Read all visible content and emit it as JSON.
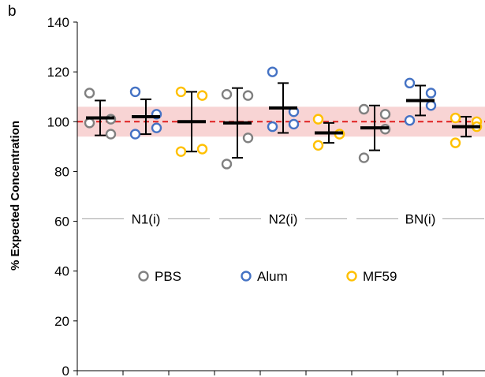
{
  "panel_label": "b",
  "chart_data": {
    "type": "scatter",
    "ylabel": "% Expected Concentration",
    "xlabel": "",
    "ylim": [
      0,
      140
    ],
    "yticks": [
      0,
      20,
      40,
      60,
      80,
      100,
      120,
      140
    ],
    "grid": false,
    "reference_line": {
      "value": 100,
      "style": "dashed",
      "color": "#e02020"
    },
    "tolerance_band": {
      "range": [
        94,
        106
      ],
      "color": "#f8d4d4"
    },
    "groups": [
      {
        "label": "N1(i)",
        "positions": [
          0,
          1,
          2
        ]
      },
      {
        "label": "N2(i)",
        "positions": [
          3,
          4,
          5
        ]
      },
      {
        "label": "BN(i)",
        "positions": [
          6,
          7,
          8
        ]
      }
    ],
    "group_label_y": 61,
    "legend_placement": "center",
    "legend": [
      {
        "name": "PBS",
        "color": "#808080"
      },
      {
        "name": "Alum",
        "color": "#4472c4"
      },
      {
        "name": "MF59",
        "color": "#ffc000"
      }
    ],
    "series": [
      {
        "name": "PBS",
        "color": "#808080",
        "position": 0,
        "points": [
          111.5,
          101,
          95,
          99.5
        ],
        "mean": 101.5,
        "error": 7
      },
      {
        "name": "Alum",
        "color": "#4472c4",
        "position": 1,
        "points": [
          112,
          103,
          97.5,
          95
        ],
        "mean": 102,
        "error": 7
      },
      {
        "name": "MF59",
        "color": "#ffc000",
        "position": 2,
        "points": [
          112,
          110.5,
          89,
          88
        ],
        "mean": 100,
        "error": 12
      },
      {
        "name": "PBS",
        "color": "#808080",
        "position": 3,
        "points": [
          111,
          110.5,
          93.5,
          83
        ],
        "mean": 99.5,
        "error": 14
      },
      {
        "name": "Alum",
        "color": "#4472c4",
        "position": 4,
        "points": [
          120,
          104,
          99,
          98
        ],
        "mean": 105.5,
        "error": 10
      },
      {
        "name": "MF59",
        "color": "#ffc000",
        "position": 5,
        "points": [
          101,
          95,
          95,
          90.5
        ],
        "mean": 95.5,
        "error": 4
      },
      {
        "name": "PBS",
        "color": "#808080",
        "position": 6,
        "points": [
          105,
          103,
          97,
          85.5
        ],
        "mean": 97.5,
        "error": 9
      },
      {
        "name": "Alum",
        "color": "#4472c4",
        "position": 7,
        "points": [
          115.5,
          111.5,
          106.5,
          100.5
        ],
        "mean": 108.5,
        "error": 6
      },
      {
        "name": "MF59",
        "color": "#ffc000",
        "position": 8,
        "points": [
          101.5,
          100,
          98,
          91.5
        ],
        "mean": 98,
        "error": 4
      }
    ]
  }
}
